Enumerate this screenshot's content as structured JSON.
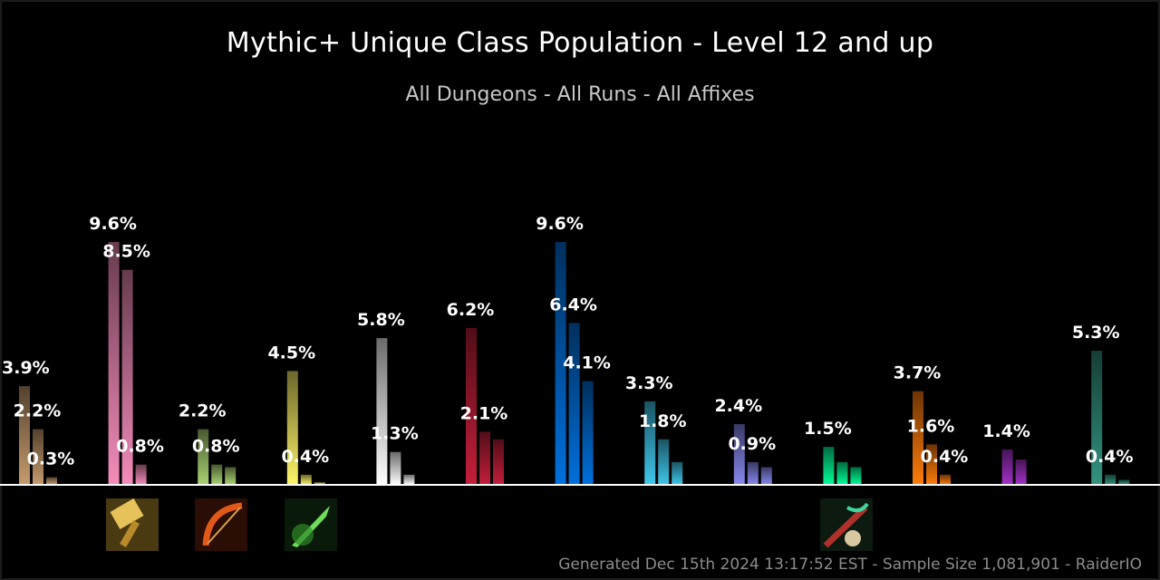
{
  "chart_data": {
    "type": "bar",
    "title": "Mythic+ Unique Class Population - Level 12 and up",
    "subtitle": "All Dungeons - All Runs - All Affixes",
    "ylim": [
      0,
      10
    ],
    "grid": false,
    "value_suffix": "%",
    "groups": [
      {
        "color": "#C69B6D",
        "values": [
          3.9,
          2.2,
          0.3
        ],
        "labels": [
          "3.9%",
          "2.2%",
          "0.3%"
        ]
      },
      {
        "color": "#F48CBA",
        "values": [
          9.6,
          8.5,
          0.8
        ],
        "labels": [
          "9.6%",
          "8.5%",
          "0.8%"
        ]
      },
      {
        "color": "#AAD372",
        "values": [
          2.2,
          0.8,
          0.7
        ],
        "labels": [
          "2.2%",
          "0.8%",
          ""
        ]
      },
      {
        "color": "#FFF468",
        "values": [
          4.5,
          0.4,
          0.1
        ],
        "labels": [
          "4.5%",
          "0.4%",
          ""
        ]
      },
      {
        "color": "#FFFFFF",
        "values": [
          5.8,
          1.3,
          0.4
        ],
        "labels": [
          "5.8%",
          "1.3%",
          ""
        ]
      },
      {
        "color": "#C41E3A",
        "values": [
          6.2,
          2.1,
          1.8
        ],
        "labels": [
          "6.2%",
          "2.1%",
          ""
        ]
      },
      {
        "color": "#0070DD",
        "values": [
          9.6,
          6.4,
          4.1
        ],
        "labels": [
          "9.6%",
          "6.4%",
          "4.1%"
        ]
      },
      {
        "color": "#3FC7EB",
        "values": [
          3.3,
          1.8,
          0.9
        ],
        "labels": [
          "3.3%",
          "1.8%",
          ""
        ]
      },
      {
        "color": "#8788EE",
        "values": [
          2.4,
          0.9,
          0.7
        ],
        "labels": [
          "2.4%",
          "0.9%",
          ""
        ]
      },
      {
        "color": "#00FF98",
        "values": [
          1.5,
          0.9,
          0.7
        ],
        "labels": [
          "1.5%",
          "",
          ""
        ]
      },
      {
        "color": "#FF7C0A",
        "values": [
          3.7,
          1.6,
          0.4
        ],
        "labels": [
          "3.7%",
          "1.6%",
          "0.4%"
        ]
      },
      {
        "color": "#A330C9",
        "values": [
          1.4,
          1.0
        ],
        "labels": [
          "1.4%",
          ""
        ]
      },
      {
        "color": "#33937F",
        "values": [
          5.3,
          0.4,
          0.2
        ],
        "labels": [
          "5.3%",
          "0.4%",
          ""
        ]
      }
    ]
  },
  "icons": [
    {
      "group": 1,
      "name": "paladin-hammer-icon"
    },
    {
      "group": 2,
      "name": "hunter-bow-icon"
    },
    {
      "group": 3,
      "name": "rogue-blade-icon"
    },
    {
      "group": 9,
      "name": "monk-staff-icon"
    }
  ],
  "footer": "Generated Dec 15th 2024 13:17:52 EST - Sample Size 1,081,901 - RaiderIO"
}
